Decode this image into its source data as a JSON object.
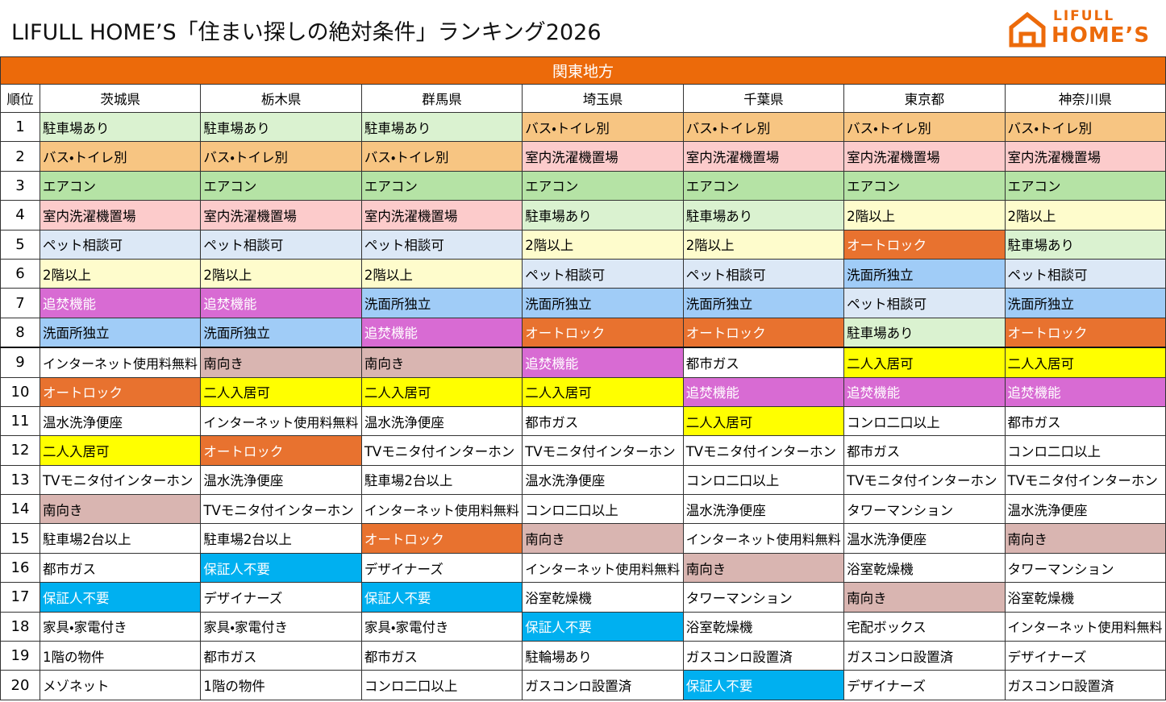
{
  "header": {
    "title": "LIFULL HOME’S「住まい探しの絶対条件」ランキング2026",
    "logo": {
      "line1": "LIFULL",
      "line2": "HOME’S"
    }
  },
  "table": {
    "region": "関東地方",
    "rank_header": "順位",
    "columns": [
      "茨城県",
      "栃木県",
      "群馬県",
      "埼玉県",
      "千葉県",
      "東京都",
      "神奈川県"
    ],
    "rows": [
      {
        "rank": 1,
        "cells": [
          "駐車場あり",
          "駐車場あり",
          "駐車場あり",
          "バス・トイレ別",
          "バス・トイレ別",
          "バス・トイレ別",
          "バス・トイレ別"
        ]
      },
      {
        "rank": 2,
        "cells": [
          "バス・トイレ別",
          "バス・トイレ別",
          "バス・トイレ別",
          "室内洗濯機置場",
          "室内洗濯機置場",
          "室内洗濯機置場",
          "室内洗濯機置場"
        ]
      },
      {
        "rank": 3,
        "cells": [
          "エアコン",
          "エアコン",
          "エアコン",
          "エアコン",
          "エアコン",
          "エアコン",
          "エアコン"
        ]
      },
      {
        "rank": 4,
        "cells": [
          "室内洗濯機置場",
          "室内洗濯機置場",
          "室内洗濯機置場",
          "駐車場あり",
          "駐車場あり",
          "2階以上",
          "2階以上"
        ]
      },
      {
        "rank": 5,
        "cells": [
          "ペット相談可",
          "ペット相談可",
          "ペット相談可",
          "2階以上",
          "2階以上",
          "オートロック",
          "駐車場あり"
        ]
      },
      {
        "rank": 6,
        "cells": [
          "2階以上",
          "2階以上",
          "2階以上",
          "ペット相談可",
          "ペット相談可",
          "洗面所独立",
          "ペット相談可"
        ]
      },
      {
        "rank": 7,
        "cells": [
          "追焚機能",
          "追焚機能",
          "洗面所独立",
          "洗面所独立",
          "洗面所独立",
          "ペット相談可",
          "洗面所独立"
        ]
      },
      {
        "rank": 8,
        "cells": [
          "洗面所独立",
          "洗面所独立",
          "追焚機能",
          "オートロック",
          "オートロック",
          "駐車場あり",
          "オートロック"
        ]
      },
      {
        "rank": 9,
        "cells": [
          "インターネット使用料無料",
          "南向き",
          "南向き",
          "追焚機能",
          "都市ガス",
          "二人入居可",
          "二人入居可"
        ]
      },
      {
        "rank": 10,
        "cells": [
          "オートロック",
          "二人入居可",
          "二人入居可",
          "二人入居可",
          "追焚機能",
          "追焚機能",
          "追焚機能"
        ]
      },
      {
        "rank": 11,
        "cells": [
          "温水洗浄便座",
          "インターネット使用料無料",
          "温水洗浄便座",
          "都市ガス",
          "二人入居可",
          "コンロ二口以上",
          "都市ガス"
        ]
      },
      {
        "rank": 12,
        "cells": [
          "二人入居可",
          "オートロック",
          "TVモニタ付インターホン",
          "TVモニタ付インターホン",
          "TVモニタ付インターホン",
          "都市ガス",
          "コンロ二口以上"
        ]
      },
      {
        "rank": 13,
        "cells": [
          "TVモニタ付インターホン",
          "温水洗浄便座",
          "駐車場2台以上",
          "温水洗浄便座",
          "コンロ二口以上",
          "TVモニタ付インターホン",
          "TVモニタ付インターホン"
        ]
      },
      {
        "rank": 14,
        "cells": [
          "南向き",
          "TVモニタ付インターホン",
          "インターネット使用料無料",
          "コンロ二口以上",
          "温水洗浄便座",
          "タワーマンション",
          "温水洗浄便座"
        ]
      },
      {
        "rank": 15,
        "cells": [
          "駐車場2台以上",
          "駐車場2台以上",
          "オートロック",
          "南向き",
          "インターネット使用料無料",
          "温水洗浄便座",
          "南向き"
        ]
      },
      {
        "rank": 16,
        "cells": [
          "都市ガス",
          "保証人不要",
          "デザイナーズ",
          "インターネット使用料無料",
          "南向き",
          "浴室乾燥機",
          "タワーマンション"
        ]
      },
      {
        "rank": 17,
        "cells": [
          "保証人不要",
          "デザイナーズ",
          "保証人不要",
          "浴室乾燥機",
          "タワーマンション",
          "南向き",
          "浴室乾燥機"
        ]
      },
      {
        "rank": 18,
        "cells": [
          "家具・家電付き",
          "家具・家電付き",
          "家具・家電付き",
          "保証人不要",
          "浴室乾燥機",
          "宅配ボックス",
          "インターネット使用料無料"
        ]
      },
      {
        "rank": 19,
        "cells": [
          "1階の物件",
          "都市ガス",
          "都市ガス",
          "駐輪場あり",
          "ガスコンロ設置済",
          "ガスコンロ設置済",
          "デザイナーズ"
        ]
      },
      {
        "rank": 20,
        "cells": [
          "メゾネット",
          "1階の物件",
          "コンロ二口以上",
          "ガスコンロ設置済",
          "保証人不要",
          "デザイナーズ",
          "ガスコンロ設置済"
        ]
      }
    ]
  },
  "cell_colors": {
    "駐車場あり": {
      "bg": "#daf2d0",
      "fg": "#000"
    },
    "バス・トイレ別": {
      "bg": "#f7c582",
      "fg": "#000"
    },
    "エアコン": {
      "bg": "#b5e3a5",
      "fg": "#000"
    },
    "室内洗濯機置場": {
      "bg": "#fccbcb",
      "fg": "#000"
    },
    "ペット相談可": {
      "bg": "#dce8f6",
      "fg": "#000"
    },
    "2階以上": {
      "bg": "#fefccc",
      "fg": "#000"
    },
    "追焚機能": {
      "bg": "#d86bd3",
      "fg": "#fff"
    },
    "洗面所独立": {
      "bg": "#a0ccf7",
      "fg": "#000"
    },
    "オートロック": {
      "bg": "#e8722f",
      "fg": "#fff"
    },
    "南向き": {
      "bg": "#d9b5b1",
      "fg": "#000"
    },
    "二人入居可": {
      "bg": "#ffff00",
      "fg": "#000"
    },
    "保証人不要": {
      "bg": "#00b0f0",
      "fg": "#fff"
    }
  }
}
